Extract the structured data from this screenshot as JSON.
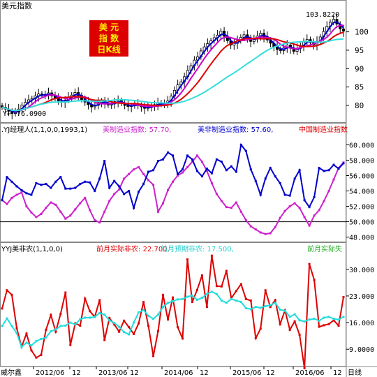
{
  "chart_data": [
    {
      "type": "candlestick",
      "panel": "price",
      "title": "美元指数",
      "badge_lines": [
        "美  元",
        "指  数",
        "日K线"
      ],
      "y_ticks": [
        80,
        85,
        90,
        95,
        100
      ],
      "ylim": [
        76,
        106
      ],
      "high_label": "103.8220",
      "low_label": "76.0900",
      "candles_close": [
        79.5,
        79.0,
        78.4,
        77.8,
        78.2,
        79.0,
        80.1,
        80.8,
        81.5,
        81.8,
        82.6,
        83.1,
        82.7,
        82.9,
        83.4,
        82.6,
        81.9,
        81.2,
        80.8,
        81.4,
        82.2,
        82.8,
        83.5,
        82.7,
        81.6,
        80.9,
        80.2,
        79.6,
        80.0,
        80.8,
        81.2,
        80.7,
        80.1,
        80.4,
        81.0,
        81.3,
        80.6,
        80.0,
        79.7,
        79.9,
        80.3,
        80.0,
        79.6,
        79.2,
        79.4,
        79.8,
        80.2,
        80.7,
        80.3,
        80.5,
        81.2,
        82.5,
        84.1,
        85.6,
        86.4,
        87.8,
        89.5,
        90.8,
        92.3,
        93.2,
        94.8,
        95.9,
        96.8,
        97.6,
        98.4,
        99.1,
        100.2,
        98.8,
        97.6,
        96.4,
        96.9,
        97.6,
        98.5,
        99.2,
        98.4,
        97.4,
        98.1,
        98.9,
        99.6,
        98.7,
        97.8,
        96.9,
        96.0,
        95.2,
        94.9,
        95.6,
        96.4,
        95.6,
        94.7,
        95.5,
        96.3,
        97.2,
        97.9,
        97.1,
        96.5,
        97.4,
        98.6,
        100.1,
        101.5,
        102.6,
        103.4,
        102.1,
        100.8,
        100.2
      ],
      "ma_series_colors": [
        "#0000cc",
        "#cc00cc",
        "#dd0000",
        "#33dddd"
      ]
    },
    {
      "type": "line",
      "panel": "pmi",
      "indicator_label": ".YJ经理人(1,1,0,0,1993,1)",
      "series": [
        {
          "name": "美制造业指数",
          "color": "#cc22cc",
          "latest": "57.70",
          "values": [
            52.8,
            52.3,
            53.1,
            53.5,
            53.8,
            52.0,
            51.2,
            50.6,
            51.0,
            51.8,
            52.5,
            52.2,
            51.3,
            50.4,
            50.8,
            51.6,
            52.4,
            53.1,
            51.5,
            50.2,
            49.9,
            51.3,
            52.7,
            53.6,
            54.2,
            55.6,
            56.2,
            56.8,
            57.1,
            56.2,
            55.4,
            54.8,
            51.3,
            52.4,
            54.1,
            55.2,
            56.0,
            56.4,
            57.1,
            57.8,
            58.6,
            57.8,
            56.6,
            55.0,
            53.6,
            52.7,
            51.9,
            51.8,
            52.5,
            51.3,
            50.2,
            49.4,
            49.0,
            48.6,
            48.4,
            48.5,
            49.3,
            50.5,
            51.4,
            52.0,
            52.4,
            51.8,
            50.6,
            49.5,
            50.8,
            51.5,
            52.7,
            54.0,
            55.5,
            57.0,
            57.7
          ]
        },
        {
          "name": "美非制造业指数",
          "color": "#0000cc",
          "latest": "57.60",
          "values": [
            52.8,
            55.8,
            55.2,
            54.6,
            54.1,
            53.7,
            53.5,
            55.0,
            54.8,
            54.9,
            54.4,
            55.2,
            55.8,
            54.3,
            54.3,
            54.4,
            54.9,
            55.2,
            55.1,
            54.0,
            55.6,
            57.9,
            54.4,
            55.3,
            54.6,
            53.6,
            54.0,
            51.8,
            53.9,
            54.9,
            56.5,
            56.7,
            57.9,
            58.1,
            59.0,
            58.6,
            56.2,
            56.8,
            58.6,
            58.1,
            56.6,
            55.9,
            56.9,
            56.3,
            58.1,
            57.8,
            56.7,
            57.2,
            56.5,
            60.0,
            59.2,
            56.8,
            55.3,
            53.5,
            55.6,
            57.0,
            55.9,
            55.0,
            53.5,
            53.4,
            55.6,
            56.7,
            52.8,
            51.9,
            53.2,
            57.0,
            56.6,
            56.7,
            57.4,
            56.9,
            57.6
          ]
        },
        {
          "name": "中国制造业指数",
          "color": "#dd0000",
          "latest": ""
        }
      ],
      "y_ticks": [
        48,
        50,
        52,
        54,
        56,
        58,
        60
      ],
      "tick_labels": [
        "48.000",
        "50.000",
        "52.000",
        "54.000",
        "56.000",
        "58.000",
        "60.000"
      ],
      "ylim": [
        47.6,
        61.4
      ],
      "reference_line": 50
    },
    {
      "type": "line",
      "panel": "nfp",
      "indicator_label": "YYJ美非农(1,1,0,0)",
      "series": [
        {
          "name": "前月实际非农",
          "color": "#dd0000",
          "latest": "22.700",
          "values": [
            19.7,
            24.5,
            23.3,
            14.5,
            9.6,
            13.1,
            8.7,
            6.8,
            7.5,
            14.1,
            18.0,
            13.6,
            18.3,
            23.9,
            10.1,
            15.8,
            15.2,
            22.3,
            19.0,
            17.5,
            21.9,
            11.4,
            17.2,
            15.5,
            13.6,
            16.5,
            14.8,
            13.0,
            15.8,
            21.4,
            15.1,
            7.2,
            13.8,
            23.3,
            16.8,
            22.6,
            14.8,
            11.8,
            32.6,
            21.4,
            24.6,
            28.4,
            20.1,
            33.6,
            25.6,
            25.5,
            29.6,
            22.4,
            24.3,
            26.1,
            22.2,
            21.8,
            11.9,
            14.4,
            24.5,
            20.1,
            21.9,
            15.6,
            19.2,
            14.1,
            16.3,
            12.8,
            4.0,
            31.4,
            27.2,
            14.9,
            15.3,
            15.6,
            16.6,
            15.2,
            22.7
          ]
        },
        {
          "name": "前月预期非农",
          "color": "#22dddd",
          "latest": "17.500",
          "values": [
            15.1,
            17.1,
            15.1,
            13.2,
            9.6,
            10.7,
            10.0,
            11.1,
            11.7,
            12.1,
            13.7,
            14.2,
            15.1,
            15.2,
            16.0,
            15.5,
            16.9,
            17.3,
            17.3,
            17.5,
            18.5,
            18.1,
            16.6,
            15.9,
            14.9,
            13.5,
            12.9,
            16.0,
            18.7,
            19.3,
            17.8,
            17.0,
            18.1,
            20.1,
            21.2,
            21.6,
            22.1,
            22.2,
            22.8,
            23.1,
            22.0,
            22.5,
            23.5,
            24.1,
            23.5,
            21.8,
            21.2,
            22.2,
            21.8,
            21.4,
            19.8,
            19.5,
            20.1,
            19.9,
            20.3,
            20.6,
            21.2,
            19.4,
            19.1,
            17.5,
            18.2,
            16.6,
            16.3,
            16.8,
            17.0,
            16.5,
            17.3,
            17.5,
            17.0,
            16.8,
            17.5
          ]
        },
        {
          "name": "前月实际失",
          "color": "#22aa22",
          "latest": ""
        }
      ],
      "y_ticks": [
        9,
        16,
        23,
        30
      ],
      "tick_labels": [
        "9.0000",
        "16.000",
        "23.000",
        "30.000"
      ],
      "ylim": [
        5,
        34
      ]
    }
  ],
  "footer": {
    "left_label": "威尔鑫",
    "x_tick_labels": [
      "2012/06",
      "12",
      "2013/06",
      "12",
      "2014/06",
      "12",
      "2015/06",
      "12",
      "2016/06",
      "12"
    ],
    "period_label": "日线"
  }
}
